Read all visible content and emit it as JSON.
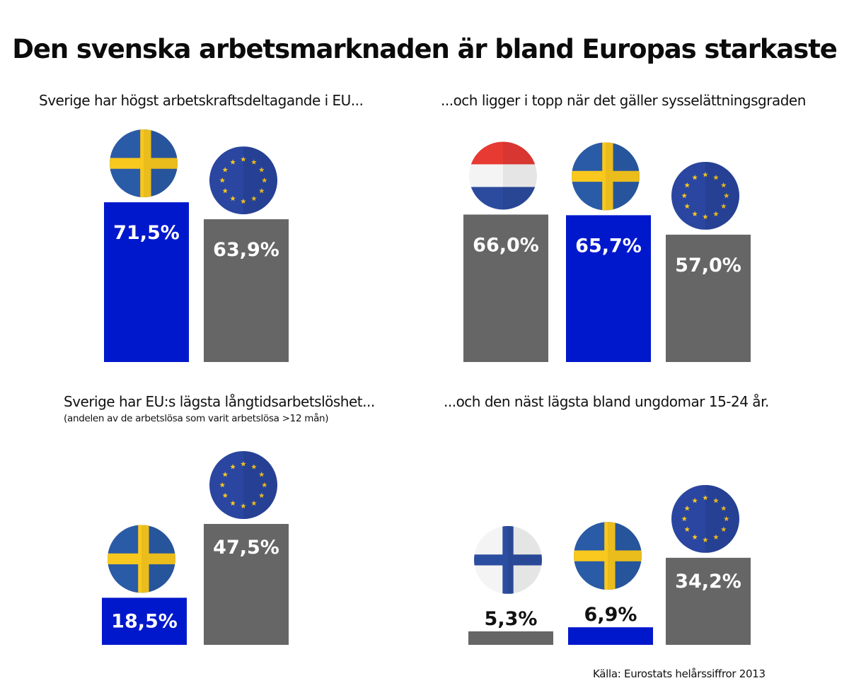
{
  "title": "Den svenska arbetsmarknaden är bland Europas starkaste",
  "source": "Källa: Eurostats helårssiffror 2013",
  "colors": {
    "sweden": "#0018cc",
    "other": "#666666"
  },
  "chart_data": [
    {
      "type": "bar",
      "title": "Sverige har högst arbetskraftsdeltagande i EU...",
      "subtitle": "",
      "categories": [
        "Sverige",
        "EU"
      ],
      "flags": [
        "sweden-flag-icon",
        "eu-flag-icon"
      ],
      "values": [
        71.5,
        63.9
      ],
      "labels": [
        "71,5%",
        "63,9%"
      ],
      "highlight": [
        true,
        false
      ]
    },
    {
      "type": "bar",
      "title": "...och ligger i topp när det gäller sysselättningsgraden",
      "subtitle": "",
      "categories": [
        "Nederländerna",
        "Sverige",
        "EU"
      ],
      "flags": [
        "netherlands-flag-icon",
        "sweden-flag-icon",
        "eu-flag-icon"
      ],
      "values": [
        66.0,
        65.7,
        57.0
      ],
      "labels": [
        "66,0%",
        "65,7%",
        "57,0%"
      ],
      "highlight": [
        false,
        true,
        false
      ]
    },
    {
      "type": "bar",
      "title": "Sverige har EU:s lägsta långtidsarbetslöshet...",
      "subtitle": "(andelen av de arbetslösa som varit arbetslösa >12 mån)",
      "categories": [
        "Sverige",
        "EU"
      ],
      "flags": [
        "sweden-flag-icon",
        "eu-flag-icon"
      ],
      "values": [
        18.5,
        47.5
      ],
      "labels": [
        "18,5%",
        "47,5%"
      ],
      "highlight": [
        true,
        false
      ]
    },
    {
      "type": "bar",
      "title": "...och den näst lägsta bland ungdomar 15-24 år.",
      "subtitle": "",
      "categories": [
        "Finland",
        "Sverige",
        "EU"
      ],
      "flags": [
        "finland-flag-icon",
        "sweden-flag-icon",
        "eu-flag-icon"
      ],
      "values": [
        5.3,
        6.9,
        34.2
      ],
      "labels": [
        "5,3%",
        "6,9%",
        "34,2%"
      ],
      "highlight": [
        false,
        true,
        false
      ]
    }
  ]
}
